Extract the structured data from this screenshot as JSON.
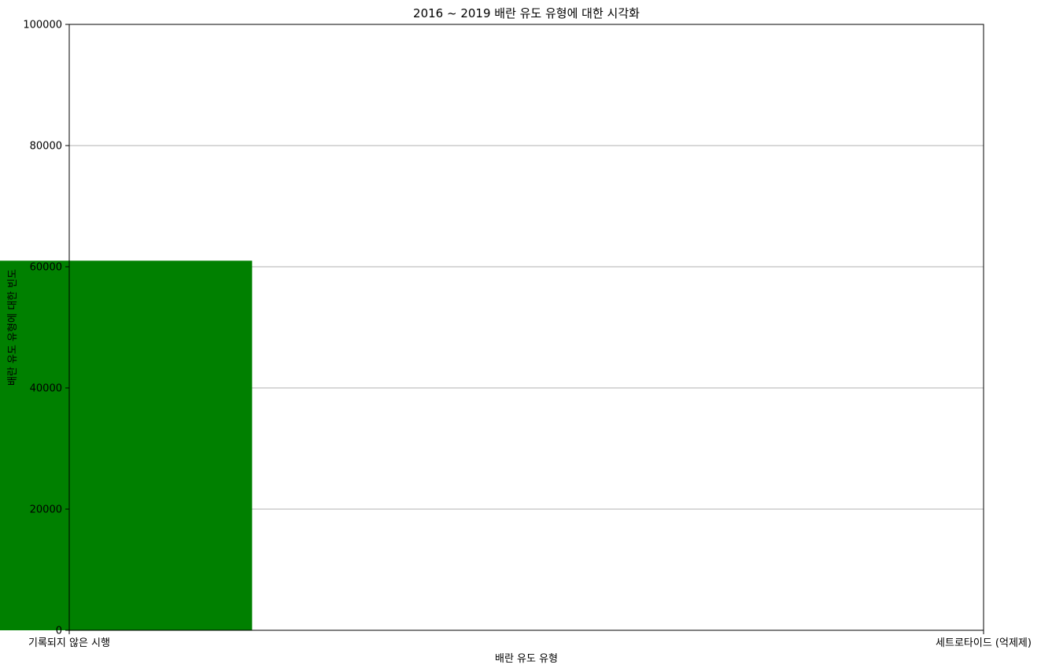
{
  "chart_data": {
    "type": "bar",
    "title": "2016 ~ 2019 배란 유도 유형에 대한 시각화",
    "xlabel": "배란 유도 유형",
    "ylabel": "배란 유도 유형에 대한 빈도",
    "categories": [
      "기록되지 않은 시행",
      "세트로타이드 (억제제)"
    ],
    "values": [
      61000,
      0
    ],
    "ylim": [
      0,
      100000
    ],
    "yticks": [
      0,
      20000,
      40000,
      60000,
      80000,
      100000
    ],
    "bar_color": "#008000",
    "grid": "y-axis horizontal lines",
    "grid_color": "#b0b0b0"
  }
}
